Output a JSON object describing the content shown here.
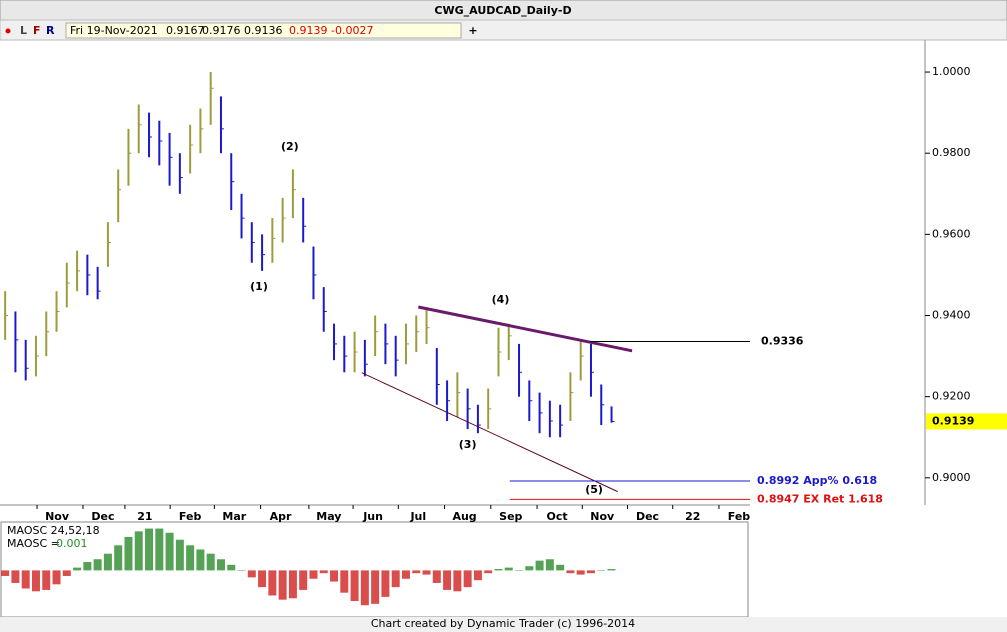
{
  "header": {
    "title": "CWG_AUDCAD_Daily-D",
    "flags": [
      "L",
      "F",
      "R"
    ],
    "quote": [
      "Fri 19-Nov-2021",
      "0.9167",
      "0.9176",
      "0.9136",
      "0.9139",
      "-0.0027"
    ],
    "plus": "+"
  },
  "footer": "Chart created by Dynamic Trader  (c) 1996-2014",
  "chart_data": [
    {
      "type": "ohlc",
      "up_color": "#9c9c3c",
      "down_color": "#1a1acc",
      "xlim": [
        -0.5,
        89.5
      ],
      "ylim": [
        0.8933,
        1.0079
      ],
      "yticks": [
        {
          "value": 0.9,
          "label": "0.9000"
        },
        {
          "value": 0.92,
          "label": "0.9200"
        },
        {
          "value": 0.94,
          "label": "0.9400"
        },
        {
          "value": 0.96,
          "label": "0.9600"
        },
        {
          "value": 0.98,
          "label": "0.9800"
        },
        {
          "value": 1.0,
          "label": "1.0000"
        }
      ],
      "xticks": [
        {
          "value": 5.05,
          "label": "Nov"
        },
        {
          "value": 9.52,
          "label": "Dec"
        },
        {
          "value": 13.6,
          "label": "21"
        },
        {
          "value": 18.0,
          "label": "Feb"
        },
        {
          "value": 22.3,
          "label": "Mar"
        },
        {
          "value": 26.8,
          "label": "Apr"
        },
        {
          "value": 31.5,
          "label": "May"
        },
        {
          "value": 35.8,
          "label": "Jun"
        },
        {
          "value": 40.2,
          "label": "Jul"
        },
        {
          "value": 44.7,
          "label": "Aug"
        },
        {
          "value": 49.2,
          "label": "Sep"
        },
        {
          "value": 53.7,
          "label": "Oct"
        },
        {
          "value": 58.1,
          "label": "Nov"
        },
        {
          "value": 62.5,
          "label": "Dec"
        },
        {
          "value": 66.9,
          "label": "22"
        },
        {
          "value": 71.4,
          "label": "Feb"
        }
      ],
      "high": [
        0.946,
        0.941,
        0.934,
        0.935,
        0.941,
        0.946,
        0.953,
        0.956,
        0.955,
        0.952,
        0.963,
        0.976,
        0.986,
        0.992,
        0.99,
        0.988,
        0.985,
        0.98,
        0.987,
        0.991,
        1.0,
        0.994,
        0.98,
        0.97,
        0.963,
        0.96,
        0.964,
        0.969,
        0.976,
        0.969,
        0.957,
        0.947,
        0.938,
        0.935,
        0.936,
        0.934,
        0.94,
        0.938,
        0.935,
        0.938,
        0.94,
        0.942,
        0.932,
        0.924,
        0.926,
        0.922,
        0.918,
        0.922,
        0.937,
        0.938,
        0.933,
        0.924,
        0.921,
        0.919,
        0.918,
        0.926,
        0.934,
        0.933,
        0.923,
        0.9176
      ],
      "low": [
        0.934,
        0.926,
        0.924,
        0.925,
        0.93,
        0.936,
        0.942,
        0.946,
        0.945,
        0.944,
        0.952,
        0.963,
        0.972,
        0.98,
        0.979,
        0.977,
        0.972,
        0.97,
        0.975,
        0.98,
        0.987,
        0.98,
        0.966,
        0.959,
        0.953,
        0.951,
        0.953,
        0.958,
        0.964,
        0.958,
        0.944,
        0.936,
        0.929,
        0.926,
        0.926,
        0.925,
        0.93,
        0.928,
        0.925,
        0.928,
        0.931,
        0.933,
        0.918,
        0.914,
        0.915,
        0.912,
        0.911,
        0.912,
        0.925,
        0.929,
        0.92,
        0.914,
        0.911,
        0.91,
        0.91,
        0.914,
        0.924,
        0.92,
        0.913,
        0.9136
      ],
      "close": [
        0.94,
        0.934,
        0.927,
        0.93,
        0.936,
        0.941,
        0.948,
        0.951,
        0.95,
        0.946,
        0.958,
        0.971,
        0.98,
        0.987,
        0.984,
        0.983,
        0.979,
        0.974,
        0.982,
        0.986,
        0.996,
        0.986,
        0.973,
        0.964,
        0.958,
        0.955,
        0.959,
        0.964,
        0.971,
        0.962,
        0.95,
        0.941,
        0.933,
        0.93,
        0.931,
        0.928,
        0.936,
        0.933,
        0.929,
        0.933,
        0.936,
        0.937,
        0.923,
        0.919,
        0.921,
        0.917,
        0.913,
        0.917,
        0.931,
        0.935,
        0.926,
        0.919,
        0.916,
        0.914,
        0.913,
        0.921,
        0.93,
        0.926,
        0.918,
        0.9139
      ],
      "annotations": [
        {
          "text": "(1)",
          "x": 24.7,
          "y": 0.947
        },
        {
          "text": "(2)",
          "x": 27.7,
          "y": 0.9815
        },
        {
          "text": "(3)",
          "x": 45.0,
          "y": 0.9081
        },
        {
          "text": "(4)",
          "x": 48.2,
          "y": 0.9438
        },
        {
          "text": "(5)",
          "x": 57.3,
          "y": 0.897
        }
      ],
      "trendlines": [
        {
          "x": [
            40.2,
            61.0
          ],
          "y": [
            0.9421,
            0.9313
          ],
          "color": "#6a1a6a",
          "width": 3
        },
        {
          "x": [
            34.7,
            59.6
          ],
          "y": [
            0.9259,
            0.8966
          ],
          "color": "#5a0a20",
          "width": 1
        }
      ],
      "levels": [
        {
          "value": 0.9336,
          "start": 56.9,
          "color": "#000000"
        },
        {
          "value": 0.8992,
          "start": 49.1,
          "label": "0.8992 App% 0.618",
          "color": "#1a1acc"
        },
        {
          "value": 0.8947,
          "start": 49.1,
          "label": "0.8947 EX Ret 1.618",
          "color": "#e01010"
        }
      ],
      "last_color": "#ffff00"
    },
    {
      "type": "bar",
      "name": "MAOSC 24,52,18",
      "readout_label": "MAOSC =",
      "readout": "0.001",
      "pos_color": "#2a8a2a",
      "neg_color": "#d02020",
      "ylim": [
        -0.032,
        0.034
      ],
      "values": [
        -0.004,
        -0.009,
        -0.013,
        -0.015,
        -0.014,
        -0.01,
        -0.004,
        0.002,
        0.006,
        0.008,
        0.012,
        0.018,
        0.024,
        0.028,
        0.03,
        0.03,
        0.027,
        0.022,
        0.018,
        0.015,
        0.012,
        0.008,
        0.004,
        0.0,
        -0.005,
        -0.012,
        -0.018,
        -0.021,
        -0.02,
        -0.014,
        -0.006,
        -0.002,
        -0.008,
        -0.016,
        -0.022,
        -0.025,
        -0.024,
        -0.019,
        -0.012,
        -0.006,
        -0.002,
        -0.003,
        -0.009,
        -0.014,
        -0.015,
        -0.012,
        -0.007,
        -0.002,
        0.001,
        0.002,
        0.0,
        0.003,
        0.007,
        0.008,
        0.004,
        -0.002,
        -0.003,
        -0.002,
        0.0,
        0.001
      ]
    }
  ]
}
